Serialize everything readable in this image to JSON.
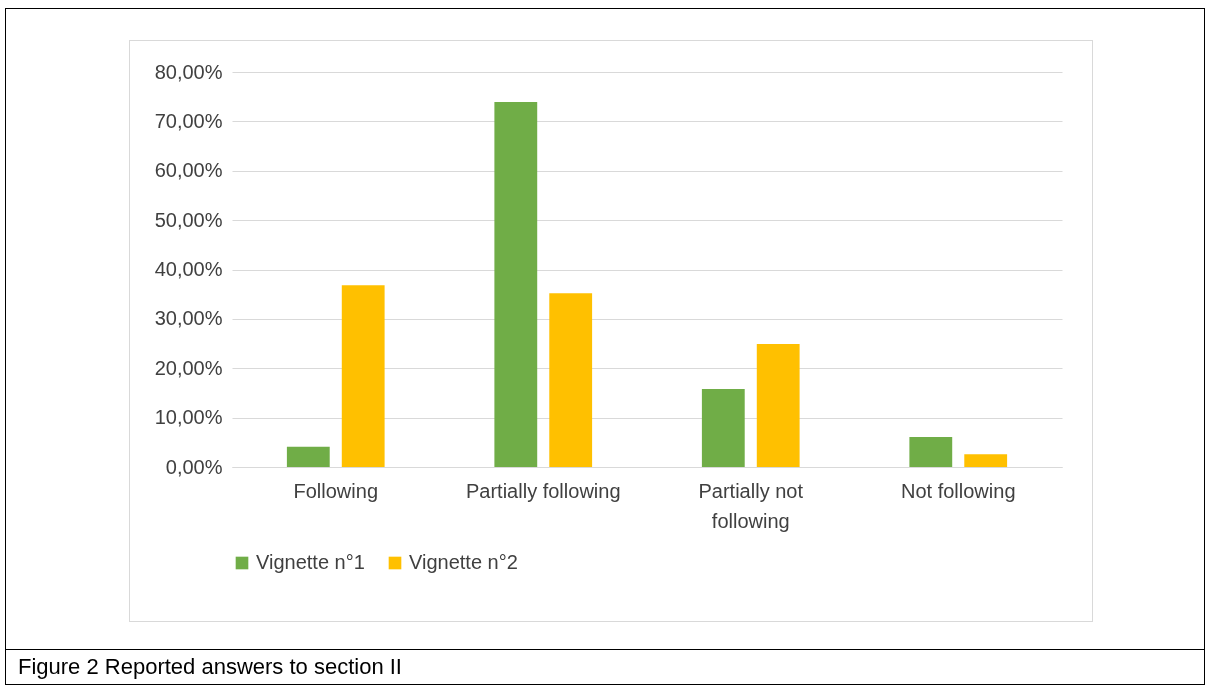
{
  "chart_data": {
    "type": "bar",
    "categories": [
      "Following",
      "Partially following",
      "Partially not following",
      "Not following"
    ],
    "series": [
      {
        "name": "Vignette n°1",
        "color": "#70ad47",
        "values": [
          4.1,
          73.9,
          15.8,
          6.1
        ]
      },
      {
        "name": "Vignette n°2",
        "color": "#ffc000",
        "values": [
          36.8,
          35.2,
          24.9,
          2.6
        ]
      }
    ],
    "ylim": [
      0,
      80
    ],
    "yticks": [
      {
        "value": 0,
        "label": "0,00%"
      },
      {
        "value": 10,
        "label": "10,00%"
      },
      {
        "value": 20,
        "label": "20,00%"
      },
      {
        "value": 30,
        "label": "30,00%"
      },
      {
        "value": 40,
        "label": "40,00%"
      },
      {
        "value": 50,
        "label": "50,00%"
      },
      {
        "value": 60,
        "label": "60,00%"
      },
      {
        "value": 70,
        "label": "70,00%"
      },
      {
        "value": 80,
        "label": "80,00%"
      }
    ],
    "grid": "y",
    "legend": "bottom",
    "annotations": [
      "Figure 2 Reported answers to section II"
    ]
  }
}
